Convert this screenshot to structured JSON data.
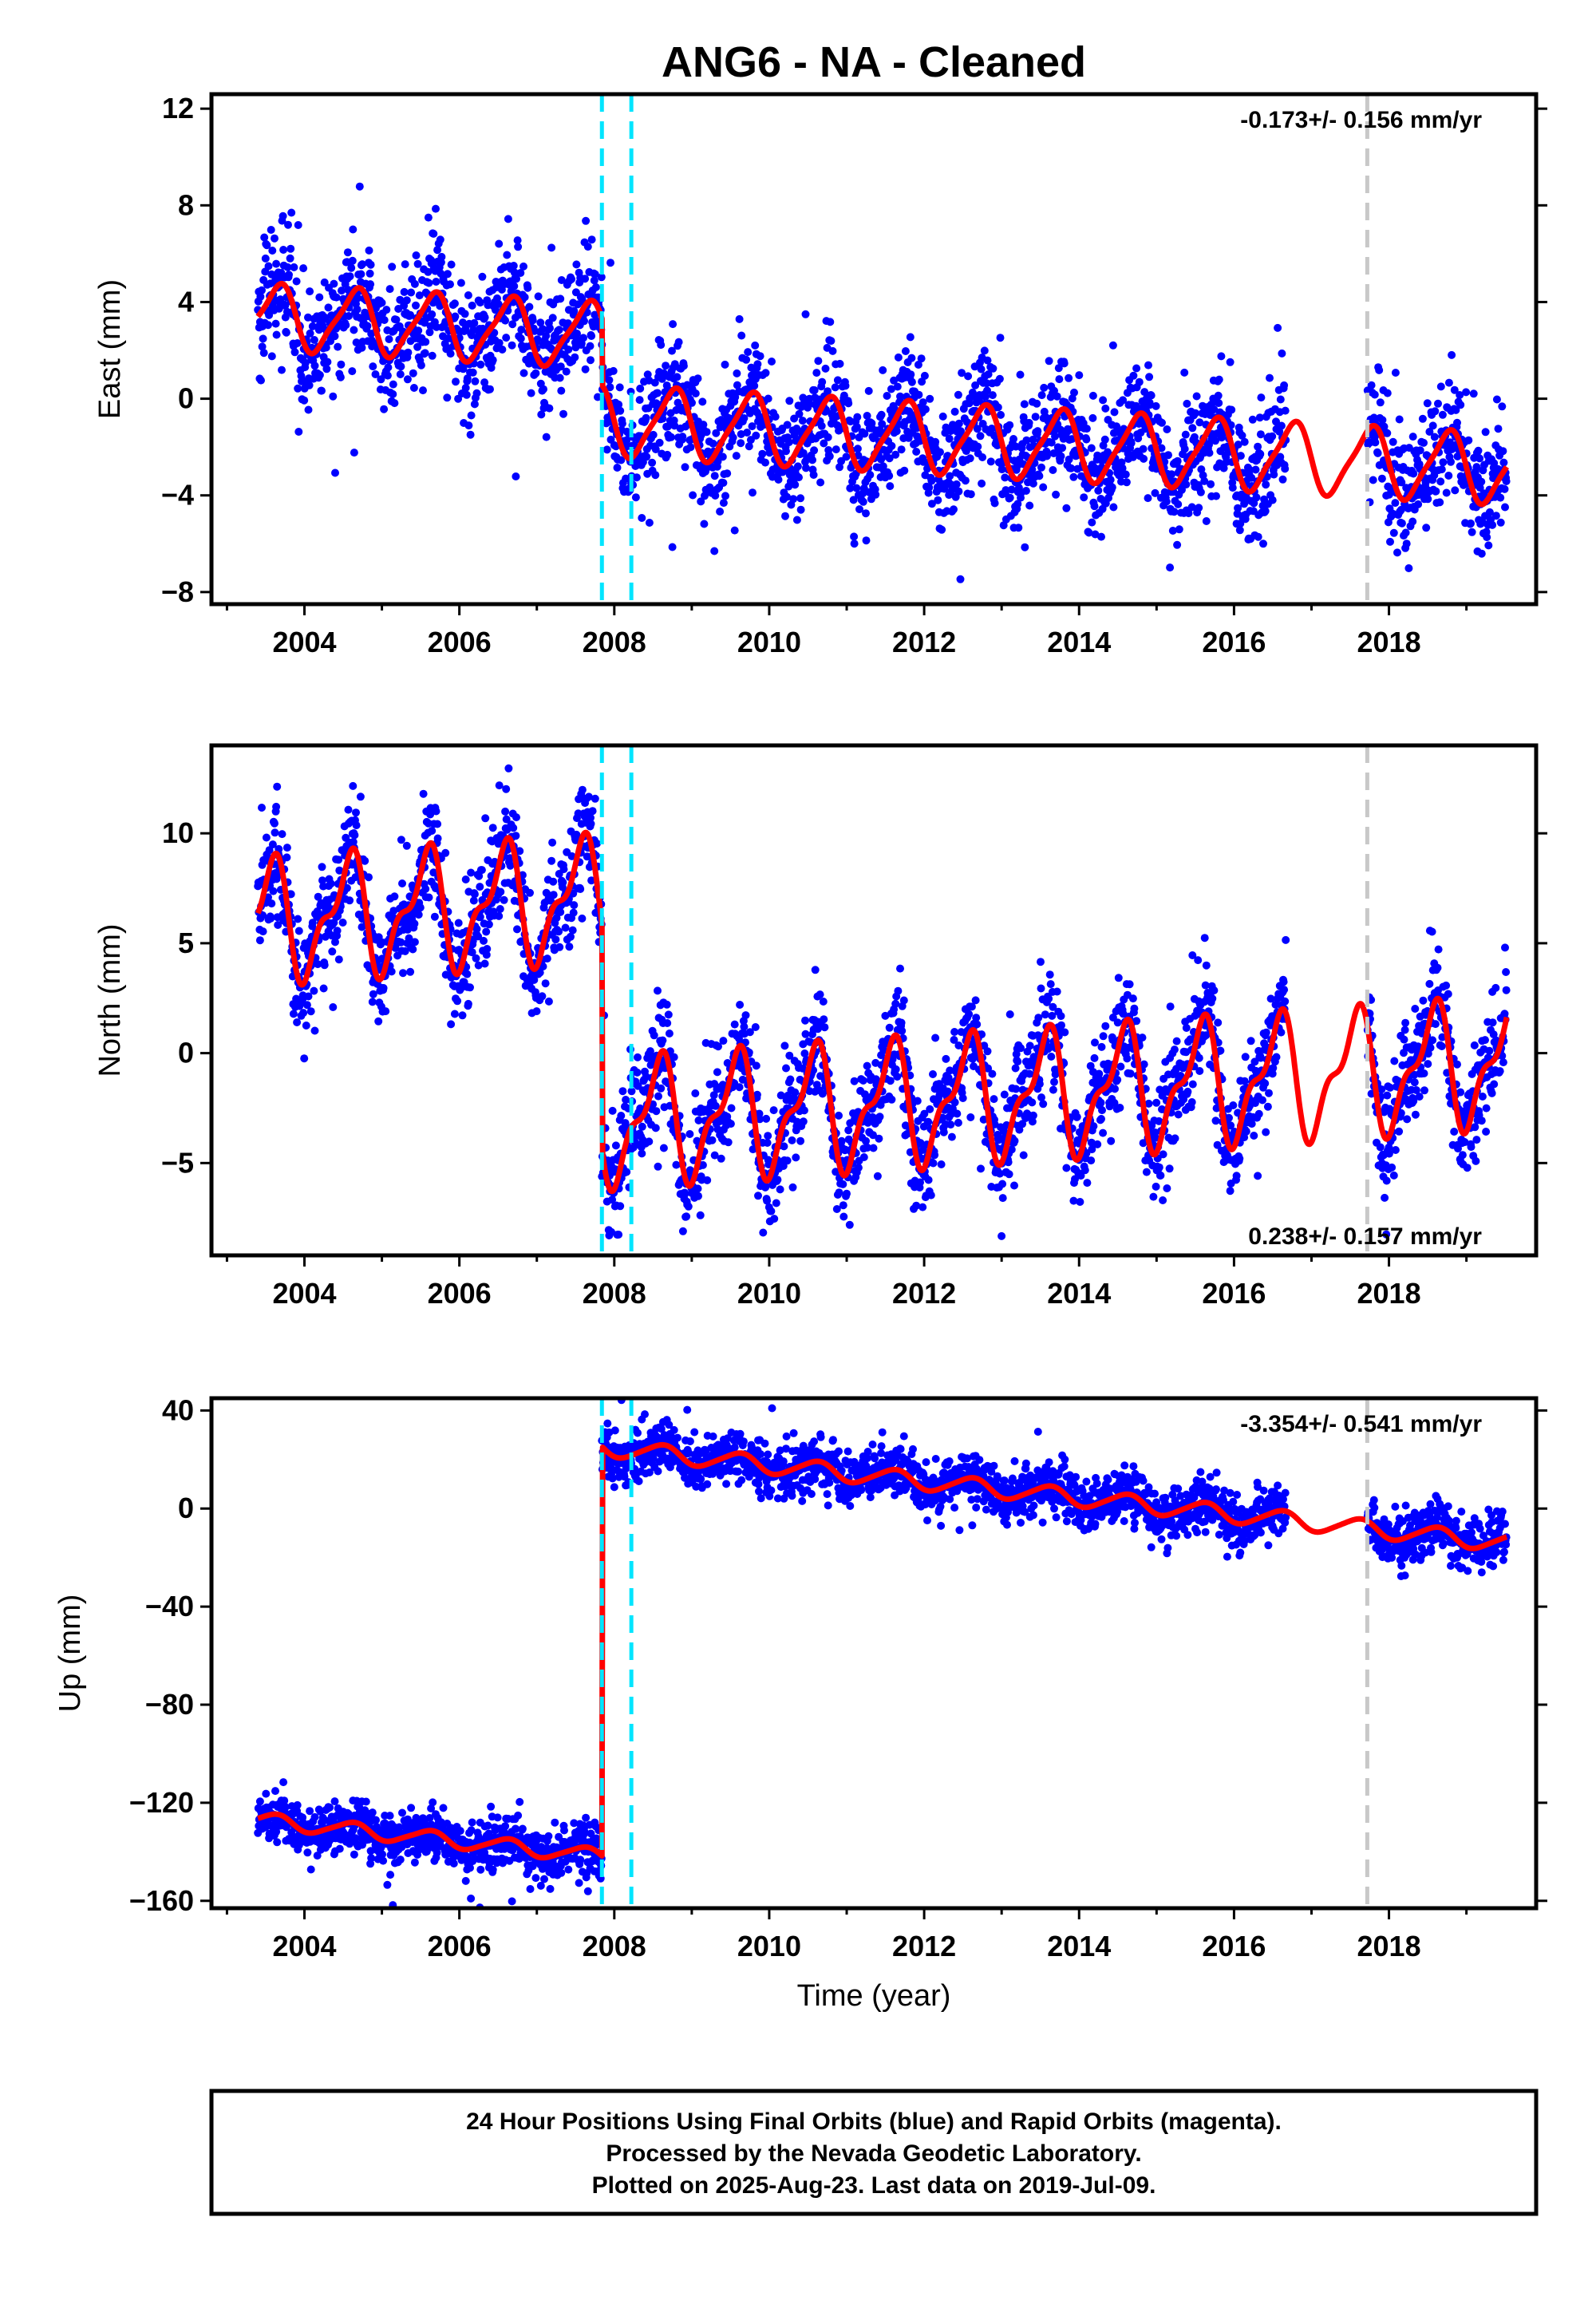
{
  "title": "ANG6  - NA - Cleaned",
  "footer": {
    "line1": "24 Hour Positions Using Final Orbits (blue) and Rapid Orbits (magenta).",
    "line2": "Processed by the Nevada Geodetic Laboratory.",
    "line3": "Plotted on 2025-Aug-23. Last data on 2019-Jul-09."
  },
  "colors": {
    "data_points": "#0000ff",
    "model_fit": "#ff0000",
    "event_line": "#00e5ff",
    "equipment_line": "#c8c8c8"
  },
  "chart_data": [
    {
      "type": "scatter",
      "component": "east",
      "ylabel": "East (mm)",
      "xlabel": "",
      "xlim": [
        2002.8,
        2019.9
      ],
      "ylim": [
        -8.5,
        12.6
      ],
      "yticks": [
        12,
        8,
        4,
        0,
        -4,
        -8
      ],
      "ytick_labels": [
        "12",
        "8",
        "4",
        "0",
        "−4",
        "−8"
      ],
      "xticks": [
        2004,
        2006,
        2008,
        2010,
        2012,
        2014,
        2016,
        2018
      ],
      "xtick_labels": [
        "2004",
        "2006",
        "2008",
        "2010",
        "2012",
        "2014",
        "2016",
        "2018"
      ],
      "rate_text": "-0.173+/- 0.156 mm/yr",
      "rate_position": "top-right",
      "event_lines": [
        2007.84,
        2008.22
      ],
      "equipment_lines": [
        2017.72
      ],
      "data_gap": [
        2016.67,
        2017.72
      ],
      "data_start": 2003.4,
      "data_end": 2019.52,
      "model": {
        "segments": [
          {
            "start": 2003.4,
            "end": 2007.84,
            "offset": 3.4,
            "trend": -0.173,
            "amp": 1.3,
            "phase": 2003.65,
            "semi": 0.3
          },
          {
            "start": 2007.84,
            "end": 2019.52,
            "offset": -0.9,
            "trend": -0.173,
            "amp": 1.4,
            "phase": 2008.75,
            "semi": 0.3
          }
        ]
      }
    },
    {
      "type": "scatter",
      "component": "north",
      "ylabel": "North (mm)",
      "xlabel": "",
      "xlim": [
        2002.8,
        2019.9
      ],
      "ylim": [
        -9.2,
        14.0
      ],
      "yticks": [
        10,
        5,
        0,
        -5
      ],
      "ytick_labels": [
        "10",
        "5",
        "0",
        "−5"
      ],
      "xticks": [
        2004,
        2006,
        2008,
        2010,
        2012,
        2014,
        2016,
        2018
      ],
      "xtick_labels": [
        "2004",
        "2006",
        "2008",
        "2010",
        "2012",
        "2014",
        "2016",
        "2018"
      ],
      "rate_text": "0.238+/- 0.157 mm/yr",
      "rate_position": "bottom-right",
      "event_lines": [
        2007.84,
        2008.22
      ],
      "equipment_lines": [
        2017.72
      ],
      "data_gap": [
        2016.67,
        2017.72
      ],
      "data_start": 2003.4,
      "data_end": 2019.52,
      "model": {
        "segments": [
          {
            "start": 2003.4,
            "end": 2007.84,
            "offset": 6.0,
            "trend": 0.238,
            "amp": 2.4,
            "phase": 2003.55,
            "semi": 1.1
          },
          {
            "start": 2007.84,
            "end": 2019.52,
            "offset": -3.2,
            "trend": 0.238,
            "amp": 2.5,
            "phase": 2008.55,
            "semi": 1.1
          }
        ]
      }
    },
    {
      "type": "scatter",
      "component": "up",
      "ylabel": "Up (mm)",
      "xlabel": "Time (year)",
      "xlim": [
        2002.8,
        2019.9
      ],
      "ylim": [
        -163,
        45
      ],
      "yticks": [
        40,
        0,
        -40,
        -80,
        -120,
        -160
      ],
      "ytick_labels": [
        "40",
        "0",
        "−40",
        "−80",
        "−120",
        "−160"
      ],
      "xticks": [
        2004,
        2006,
        2008,
        2010,
        2012,
        2014,
        2016,
        2018
      ],
      "xtick_labels": [
        "2004",
        "2006",
        "2008",
        "2010",
        "2012",
        "2014",
        "2016",
        "2018"
      ],
      "rate_text": "-3.354+/- 0.541 mm/yr",
      "rate_position": "top-right",
      "event_lines": [
        2007.84,
        2008.22
      ],
      "equipment_lines": [
        2017.72
      ],
      "data_gap": [
        2016.67,
        2017.72
      ],
      "data_start": 2003.4,
      "data_end": 2019.52,
      "model": {
        "segments": [
          {
            "start": 2003.4,
            "end": 2007.84,
            "offset": -127,
            "trend": -3.354,
            "amp": 3.0,
            "phase": 2003.6,
            "semi": 0.5
          },
          {
            "start": 2007.84,
            "end": 2019.52,
            "offset": 25,
            "trend": -3.354,
            "amp": 3.5,
            "phase": 2008.6,
            "semi": 0.5
          }
        ]
      }
    }
  ]
}
